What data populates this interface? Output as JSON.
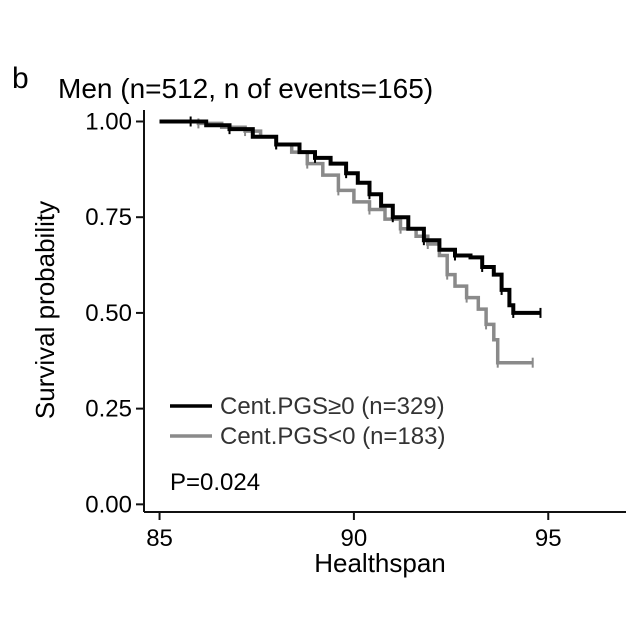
{
  "panel_label": "b",
  "chart_data": {
    "type": "line",
    "title": "Men (n=512, n of events=165)",
    "xlabel": "Healthspan",
    "ylabel": "Survival probability",
    "xlim": [
      84.6,
      97.0
    ],
    "ylim": [
      -0.02,
      1.03
    ],
    "x_ticks": [
      85,
      90,
      95
    ],
    "x_tick_labels": [
      "85",
      "90",
      "95"
    ],
    "y_ticks": [
      0.0,
      0.25,
      0.5,
      0.75,
      1.0
    ],
    "y_tick_labels": [
      "0.00",
      "0.25",
      "0.50",
      "0.75",
      "1.00"
    ],
    "grid": false,
    "legend_position": "bottom-left",
    "annotation": "P=0.024",
    "colors": {
      "high": "#000000",
      "low": "#8a8a8a"
    },
    "series": [
      {
        "name": "Cent.PGS≥0 (n=329)",
        "color": "#000000",
        "points": [
          [
            85.0,
            1.0
          ],
          [
            85.8,
            1.0
          ],
          [
            86.2,
            0.99
          ],
          [
            86.8,
            0.98
          ],
          [
            87.4,
            0.96
          ],
          [
            88.0,
            0.94
          ],
          [
            88.6,
            0.92
          ],
          [
            89.0,
            0.905
          ],
          [
            89.4,
            0.89
          ],
          [
            89.8,
            0.865
          ],
          [
            90.1,
            0.84
          ],
          [
            90.4,
            0.81
          ],
          [
            90.7,
            0.78
          ],
          [
            91.0,
            0.75
          ],
          [
            91.4,
            0.72
          ],
          [
            91.8,
            0.69
          ],
          [
            92.2,
            0.665
          ],
          [
            92.6,
            0.65
          ],
          [
            93.0,
            0.645
          ],
          [
            93.3,
            0.62
          ],
          [
            93.6,
            0.6
          ],
          [
            93.8,
            0.56
          ],
          [
            94.0,
            0.52
          ],
          [
            94.1,
            0.5
          ],
          [
            94.8,
            0.5
          ]
        ]
      },
      {
        "name": "Cent.PGS<0 (n=183)",
        "color": "#8a8a8a",
        "points": [
          [
            85.0,
            1.0
          ],
          [
            86.0,
            0.995
          ],
          [
            86.6,
            0.985
          ],
          [
            87.2,
            0.975
          ],
          [
            87.6,
            0.96
          ],
          [
            88.0,
            0.94
          ],
          [
            88.4,
            0.92
          ],
          [
            88.8,
            0.89
          ],
          [
            89.2,
            0.86
          ],
          [
            89.6,
            0.82
          ],
          [
            90.0,
            0.79
          ],
          [
            90.4,
            0.77
          ],
          [
            90.8,
            0.745
          ],
          [
            91.2,
            0.72
          ],
          [
            91.6,
            0.7
          ],
          [
            91.9,
            0.68
          ],
          [
            92.2,
            0.65
          ],
          [
            92.4,
            0.6
          ],
          [
            92.6,
            0.57
          ],
          [
            92.9,
            0.54
          ],
          [
            93.2,
            0.51
          ],
          [
            93.4,
            0.47
          ],
          [
            93.6,
            0.43
          ],
          [
            93.7,
            0.37
          ],
          [
            94.6,
            0.37
          ]
        ]
      }
    ]
  }
}
